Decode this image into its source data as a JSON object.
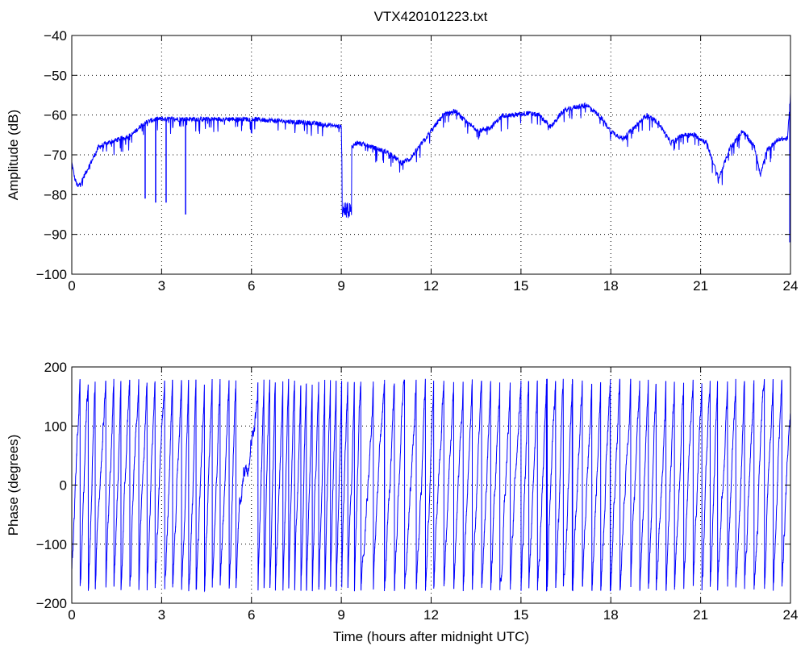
{
  "figure": {
    "title": "VTX420101223.txt"
  },
  "chart_data": [
    {
      "type": "line",
      "title": "VTX420101223.txt",
      "xlabel": "",
      "ylabel": "Amplitude (dB)",
      "xlim": [
        0,
        24
      ],
      "ylim": [
        -100,
        -40
      ],
      "xticks": [
        0,
        3,
        6,
        9,
        12,
        15,
        18,
        21,
        24
      ],
      "xtick_labels": [
        "0",
        "3",
        "6",
        "9",
        "12",
        "15",
        "18",
        "21",
        "24"
      ],
      "yticks": [
        -100,
        -90,
        -80,
        -70,
        -60,
        -50,
        -40
      ],
      "ytick_labels": [
        "−100",
        "−90",
        "−80",
        "−70",
        "−60",
        "−50",
        "−40"
      ],
      "grid": true,
      "line_color": "#0000ff",
      "series": [
        {
          "x": [
            0,
            0.1,
            0.2,
            0.3,
            0.5,
            0.7,
            0.9,
            1.2,
            1.6,
            2.0,
            2.4,
            2.8,
            3.2,
            3.6,
            4.0,
            5.0,
            6.0,
            7.0,
            8.0,
            8.6,
            9.0,
            9.05,
            9.2,
            9.35,
            9.5,
            9.8,
            10.2,
            10.6,
            11.0,
            11.3,
            11.6,
            12.0,
            12.4,
            12.8,
            13.2,
            13.6,
            14.0,
            14.4,
            14.8,
            15.2,
            15.6,
            16.0,
            16.4,
            16.8,
            17.2,
            17.6,
            18.0,
            18.4,
            18.8,
            19.2,
            19.6,
            20.0,
            20.4,
            20.8,
            21.2,
            21.6,
            22.0,
            22.4,
            22.8,
            23.0,
            23.2,
            23.6,
            23.9,
            24.0
          ],
          "y": [
            -72,
            -76,
            -78,
            -77,
            -74,
            -71,
            -68,
            -67,
            -66,
            -65,
            -62,
            -61,
            -61,
            -61,
            -61,
            -61,
            -61,
            -61.5,
            -62,
            -62.5,
            -63,
            -84,
            -86,
            -68,
            -67,
            -67.5,
            -68.5,
            -69.5,
            -72,
            -71,
            -68,
            -64,
            -60,
            -59,
            -62,
            -64,
            -63,
            -60,
            -60,
            -59.5,
            -60,
            -63,
            -59,
            -58,
            -57.5,
            -60,
            -64,
            -66,
            -63,
            -60,
            -62,
            -67,
            -65,
            -65,
            -67,
            -76,
            -68,
            -64,
            -68,
            -75,
            -69,
            -66,
            -66,
            -55
          ]
        }
      ],
      "dropouts": [
        {
          "x": 2.45,
          "y": -81
        },
        {
          "x": 2.8,
          "y": -82
        },
        {
          "x": 3.15,
          "y": -82
        },
        {
          "x": 3.8,
          "y": -85
        },
        {
          "x": 23.98,
          "y": -92
        }
      ]
    },
    {
      "type": "line",
      "title": "",
      "xlabel": "Time (hours after midnight UTC)",
      "ylabel": "Phase (degrees)",
      "xlim": [
        0,
        24
      ],
      "ylim": [
        -200,
        200
      ],
      "xticks": [
        0,
        3,
        6,
        9,
        12,
        15,
        18,
        21,
        24
      ],
      "xtick_labels": [
        "0",
        "3",
        "6",
        "9",
        "12",
        "15",
        "18",
        "21",
        "24"
      ],
      "yticks": [
        -200,
        -100,
        0,
        100,
        200
      ],
      "ytick_labels": [
        "−200",
        "−100",
        "0",
        "100",
        "200"
      ],
      "grid": true,
      "line_color": "#0000ff",
      "series": [
        {
          "pattern": "sawtooth phase wrapping between -180 and 180 degrees across the full day",
          "wrap_range": [
            -180,
            180
          ],
          "cycle_periods_hours": [
            {
              "from": 0,
              "to": 5.6,
              "period": 0.28
            },
            {
              "from": 5.6,
              "to": 6.2,
              "period": 0.9
            },
            {
              "from": 6.2,
              "to": 9.6,
              "period": 0.2
            },
            {
              "from": 9.6,
              "to": 11.6,
              "period": 0.35
            },
            {
              "from": 11.6,
              "to": 13.0,
              "period": 0.3
            },
            {
              "from": 13.0,
              "to": 16.5,
              "period": 0.33
            },
            {
              "from": 16.5,
              "to": 24,
              "period": 0.3
            }
          ]
        }
      ]
    }
  ]
}
